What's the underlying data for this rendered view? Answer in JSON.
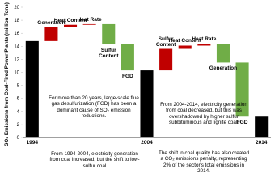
{
  "chart_data": {
    "type": "waterfall",
    "y_label": "SO₂ Emissions from Coal-Fired Power Plants (million Tons)",
    "categories": [
      "1994",
      "Generation",
      "Heat Content",
      "Heat Rate",
      "Sulfur Content",
      "FGD",
      "2004",
      "Sulfur Content",
      "Heat Content",
      "Heat Rate",
      "Generation",
      "FGD",
      "2014"
    ],
    "measure": [
      "absolute",
      "relative",
      "relative",
      "relative",
      "relative",
      "relative",
      "absolute",
      "relative",
      "relative",
      "relative",
      "relative",
      "relative",
      "absolute"
    ],
    "values": [
      14.8,
      2.1,
      0.4,
      0.1,
      -3.1,
      -4.0,
      10.3,
      3.3,
      0.5,
      0.3,
      -2.9,
      -8.3,
      3.2
    ],
    "colors": {
      "total": "#000000",
      "increase": "#c00000",
      "decrease": "#70ad47"
    },
    "ylim": [
      0,
      20
    ],
    "yticks": [
      0,
      2,
      4,
      6,
      8,
      10,
      12,
      14,
      16,
      18,
      20
    ],
    "annotations": [
      "For more than 20 years, large-scale flue gas desulfurization (FGD) has been a dominant cause of SO₂ emission reductions.",
      "From 1994-2004, electricity generation from coal increased, but the shift to low-sulfur coal",
      "From 2004-2014, electricity generation from coal decreased, but this was overshadowed by higher sulfur subbituminous and lignite coal.",
      "The shift in coal quality has also created a CO₂ emissions penalty, representing 2% of the sector's total emissions in 2014."
    ]
  }
}
